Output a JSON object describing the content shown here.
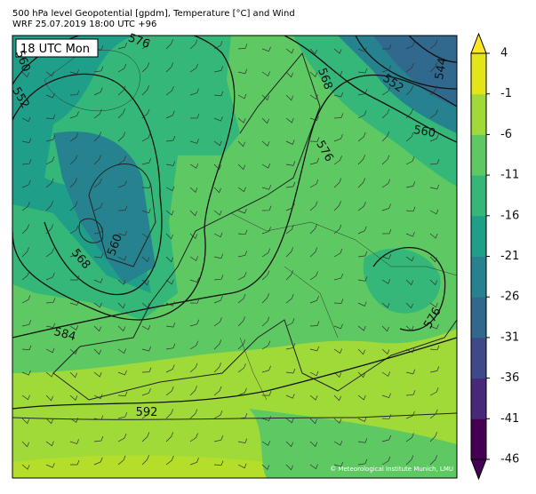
{
  "header": {
    "line1": "500 hPa level Geopotential [gpdm], Temperature [°C] and Wind",
    "line2": "WRF 25.07.2019 18:00 UTC +96"
  },
  "map": {
    "time_box": "18 UTC Mon",
    "contour_labels": [
      576,
      560,
      552,
      568,
      552,
      544,
      560,
      576,
      560,
      568,
      584,
      592,
      576
    ],
    "credit": "© Meteorological Institute Munich, LMU"
  },
  "colorbar": {
    "lim": [
      -46,
      4
    ],
    "ticks": [
      4,
      -1,
      -6,
      -11,
      -16,
      -21,
      -26,
      -31,
      -36,
      -41,
      -46
    ],
    "colors": [
      "#440154",
      "#482878",
      "#3e4989",
      "#31688e",
      "#26828e",
      "#1f9e89",
      "#35b779",
      "#5ec962",
      "#a0da39",
      "#e4e419"
    ]
  }
}
